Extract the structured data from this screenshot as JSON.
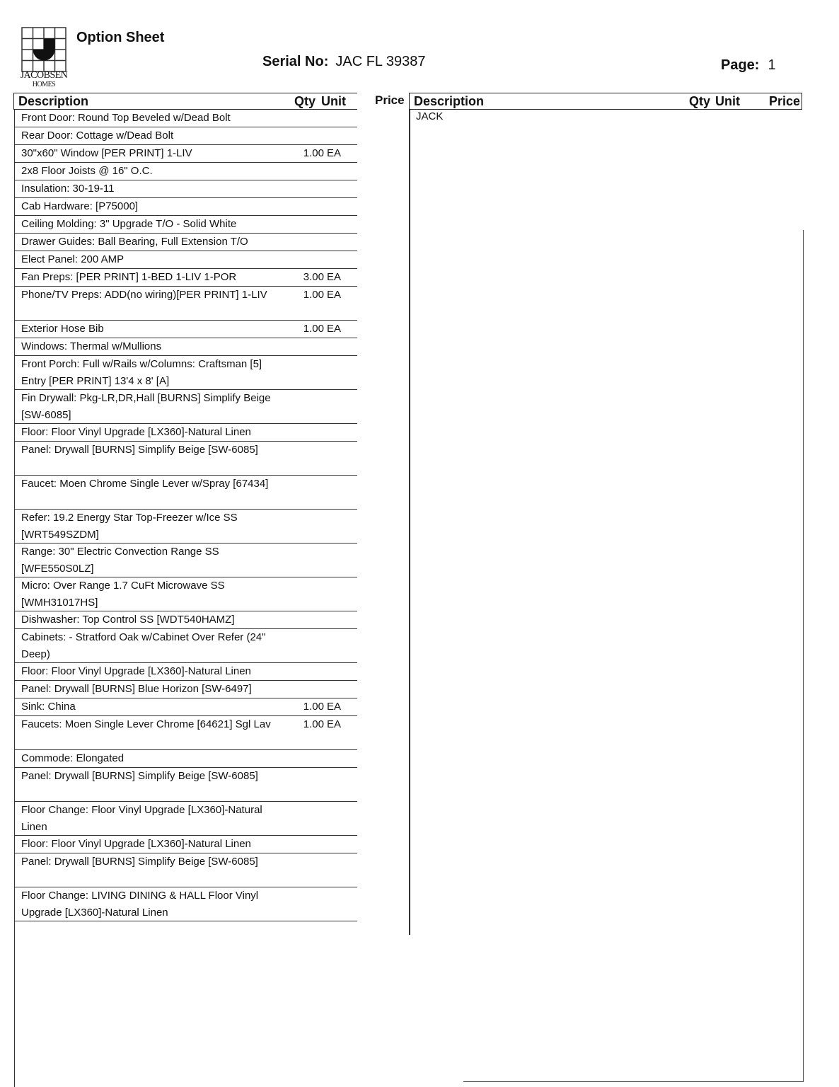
{
  "header": {
    "company_logo_text": "JACOBSEN HOMES",
    "logo_line1": "JACOBSEN",
    "logo_line2": "HOMES",
    "title": "Option Sheet",
    "serial_label": "Serial No:",
    "serial_value": "JAC FL 39387",
    "page_label": "Page:",
    "page_value": "1"
  },
  "columns": {
    "description": "Description",
    "qty": "Qty",
    "unit": "Unit",
    "price": "Price"
  },
  "left_rows": [
    {
      "desc": "Front Door: Round Top Beveled w/Dead Bolt",
      "qty": "",
      "unit": "",
      "lines": 1
    },
    {
      "desc": "Rear Door: Cottage w/Dead Bolt",
      "qty": "",
      "unit": "",
      "lines": 1
    },
    {
      "desc": "30\"x60\" Window [PER PRINT] 1-LIV",
      "qty": "1.00",
      "unit": "EA",
      "lines": 1
    },
    {
      "desc": "2x8 Floor Joists @ 16\" O.C.",
      "qty": "",
      "unit": "",
      "lines": 1
    },
    {
      "desc": "Insulation: 30-19-11",
      "qty": "",
      "unit": "",
      "lines": 1
    },
    {
      "desc": "Cab Hardware: [P75000]",
      "qty": "",
      "unit": "",
      "lines": 1
    },
    {
      "desc": "Ceiling Molding: 3\" Upgrade T/O - Solid White",
      "qty": "",
      "unit": "",
      "lines": 1
    },
    {
      "desc": "Drawer Guides: Ball Bearing, Full Extension T/O",
      "qty": "",
      "unit": "",
      "lines": 1
    },
    {
      "desc": "Elect Panel: 200 AMP",
      "qty": "",
      "unit": "",
      "lines": 1
    },
    {
      "desc": "Fan Preps: [PER PRINT] 1-BED 1-LIV 1-POR",
      "qty": "3.00",
      "unit": "EA",
      "lines": 1
    },
    {
      "desc": "Phone/TV Preps: ADD(no wiring)[PER PRINT] 1-LIV",
      "qty": "1.00",
      "unit": "EA",
      "lines": 2
    },
    {
      "desc": "Exterior Hose Bib",
      "qty": "1.00",
      "unit": "EA",
      "lines": 1
    },
    {
      "desc": "Windows: Thermal w/Mullions",
      "qty": "",
      "unit": "",
      "lines": 1
    },
    {
      "desc": "Front Porch: Full w/Rails w/Columns:  Craftsman [5] Entry [PER PRINT] 13'4 x 8' [A]",
      "qty": "",
      "unit": "",
      "lines": 2
    },
    {
      "desc": "Fin Drywall:  Pkg-LR,DR,Hall [BURNS] Simplify Beige [SW-6085]",
      "qty": "",
      "unit": "",
      "lines": 2
    },
    {
      "desc": "Floor: Floor Vinyl Upgrade [LX360]-Natural Linen",
      "qty": "",
      "unit": "",
      "lines": 1
    },
    {
      "desc": "Panel:  Drywall [BURNS] Simplify Beige [SW-6085]",
      "qty": "",
      "unit": "",
      "lines": 2
    },
    {
      "desc": "Faucet: Moen Chrome Single Lever w/Spray [67434]",
      "qty": "",
      "unit": "",
      "lines": 2
    },
    {
      "desc": "Refer: 19.2 Energy Star Top-Freezer w/Ice SS [WRT549SZDM]",
      "qty": "",
      "unit": "",
      "lines": 2
    },
    {
      "desc": "Range: 30\" Electric Convection Range SS [WFE550S0LZ]",
      "qty": "",
      "unit": "",
      "lines": 2
    },
    {
      "desc": "Micro: Over Range 1.7 CuFt Microwave SS [WMH31017HS]",
      "qty": "",
      "unit": "",
      "lines": 2
    },
    {
      "desc": "Dishwasher: Top Control SS [WDT540HAMZ]",
      "qty": "",
      "unit": "",
      "lines": 1
    },
    {
      "desc": "Cabinets: - Stratford Oak w/Cabinet Over Refer (24\" Deep)",
      "qty": "",
      "unit": "",
      "lines": 2
    },
    {
      "desc": "Floor: Floor Vinyl Upgrade [LX360]-Natural Linen",
      "qty": "",
      "unit": "",
      "lines": 1
    },
    {
      "desc": "Panel:  Drywall [BURNS] Blue Horizon [SW-6497]",
      "qty": "",
      "unit": "",
      "lines": 1
    },
    {
      "desc": "Sink: China",
      "qty": "1.00",
      "unit": "EA",
      "lines": 1
    },
    {
      "desc": "Faucets: Moen Single Lever Chrome [64621] Sgl Lav",
      "qty": "1.00",
      "unit": "EA",
      "lines": 2
    },
    {
      "desc": "Commode: Elongated",
      "qty": "",
      "unit": "",
      "lines": 1
    },
    {
      "desc": "Panel:  Drywall [BURNS] Simplify Beige [SW-6085]",
      "qty": "",
      "unit": "",
      "lines": 2
    },
    {
      "desc": "Floor Change: Floor Vinyl Upgrade [LX360]-Natural Linen",
      "qty": "",
      "unit": "",
      "lines": 2
    },
    {
      "desc": "Floor: Floor Vinyl Upgrade [LX360]-Natural Linen",
      "qty": "",
      "unit": "",
      "lines": 1
    },
    {
      "desc": "Panel:  Drywall [BURNS] Simplify Beige [SW-6085]",
      "qty": "",
      "unit": "",
      "lines": 2
    },
    {
      "desc": "Floor Change: LIVING DINING & HALL Floor Vinyl Upgrade [LX360]-Natural Linen",
      "qty": "",
      "unit": "",
      "lines": 2
    }
  ],
  "right_rows": [
    {
      "desc": "JACK"
    }
  ]
}
